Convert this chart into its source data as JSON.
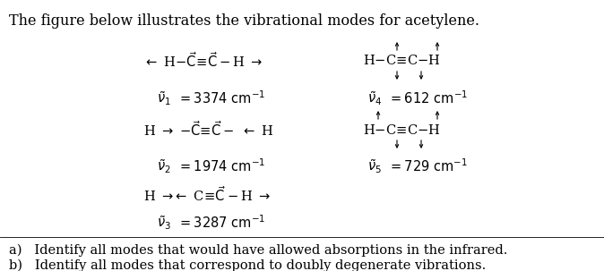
{
  "title": "The figure below illustrates the vibrational modes for acetylene.",
  "background_color": "#ffffff",
  "text_color": "#000000",
  "fig_width": 6.74,
  "fig_height": 3.03,
  "dpi": 100,
  "title_fs": 11.5,
  "body_fs": 10.5,
  "question_a": "a)   Identify all modes that would have allowed absorptions in the infrared.",
  "question_b": "b)   Identify all modes that correspond to doubly degenerate vibrations."
}
